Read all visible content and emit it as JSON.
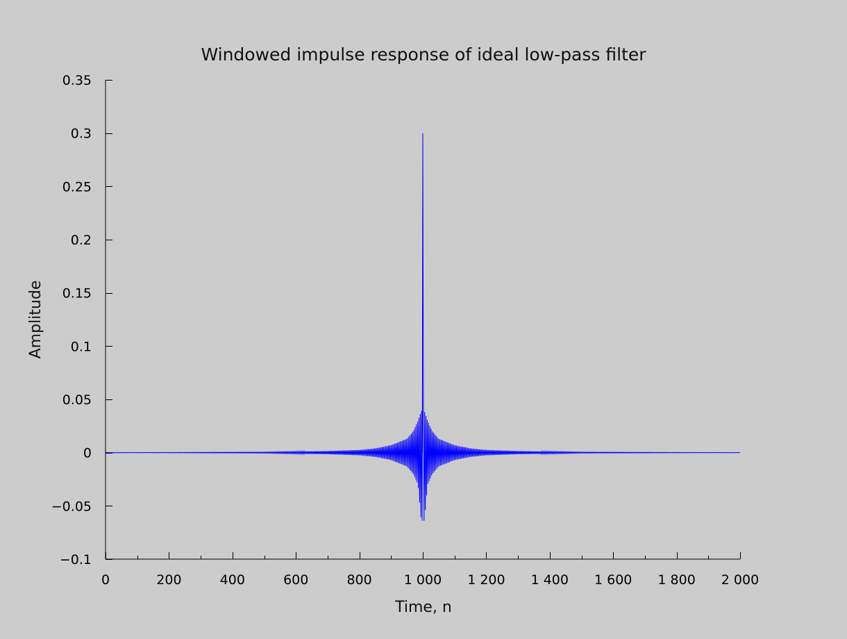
{
  "chart_data": {
    "type": "line",
    "title": "Windowed impulse response of ideal low-pass filter",
    "xlabel": "Time, n",
    "ylabel": "Amplitude",
    "xlim": [
      0,
      2000
    ],
    "ylim": [
      -0.1,
      0.35
    ],
    "x_ticks": [
      0,
      200,
      400,
      600,
      800,
      1000,
      1200,
      1400,
      1600,
      1800,
      2000
    ],
    "x_tick_labels": [
      "0",
      "200",
      "400",
      "600",
      "800",
      "1 000",
      "1 200",
      "1 400",
      "1 600",
      "1 800",
      "2 000"
    ],
    "x_minor_step": 100,
    "y_ticks": [
      -0.1,
      -0.05,
      0,
      0.05,
      0.1,
      0.15,
      0.2,
      0.25,
      0.3,
      0.35
    ],
    "y_tick_labels": [
      "−0.1",
      "−0.05",
      "0",
      "0.05",
      "0.1",
      "0.15",
      "0.2",
      "0.25",
      "0.3",
      "0.35"
    ],
    "grid": false,
    "series": [
      {
        "color": "#0000ff",
        "peak": {
          "x": 1000,
          "y": 0.3
        },
        "envelope": {
          "x": [
            0,
            500,
            600,
            700,
            800,
            850,
            900,
            950,
            970,
            985,
            995,
            1005,
            1015,
            1030,
            1050,
            1100,
            1150,
            1200,
            1300,
            1400,
            1500,
            2000
          ],
          "y_max": [
            0,
            0.0005,
            0.001,
            0.0015,
            0.0025,
            0.004,
            0.007,
            0.013,
            0.02,
            0.03,
            0.039,
            0.039,
            0.03,
            0.02,
            0.013,
            0.007,
            0.004,
            0.0025,
            0.0015,
            0.001,
            0.0005,
            0
          ],
          "y_min": [
            0,
            -0.0005,
            -0.001,
            -0.0015,
            -0.0025,
            -0.004,
            -0.007,
            -0.013,
            -0.02,
            -0.03,
            -0.064,
            -0.064,
            -0.03,
            -0.02,
            -0.013,
            -0.007,
            -0.004,
            -0.0025,
            -0.0015,
            -0.001,
            -0.0005,
            0
          ]
        }
      }
    ]
  }
}
